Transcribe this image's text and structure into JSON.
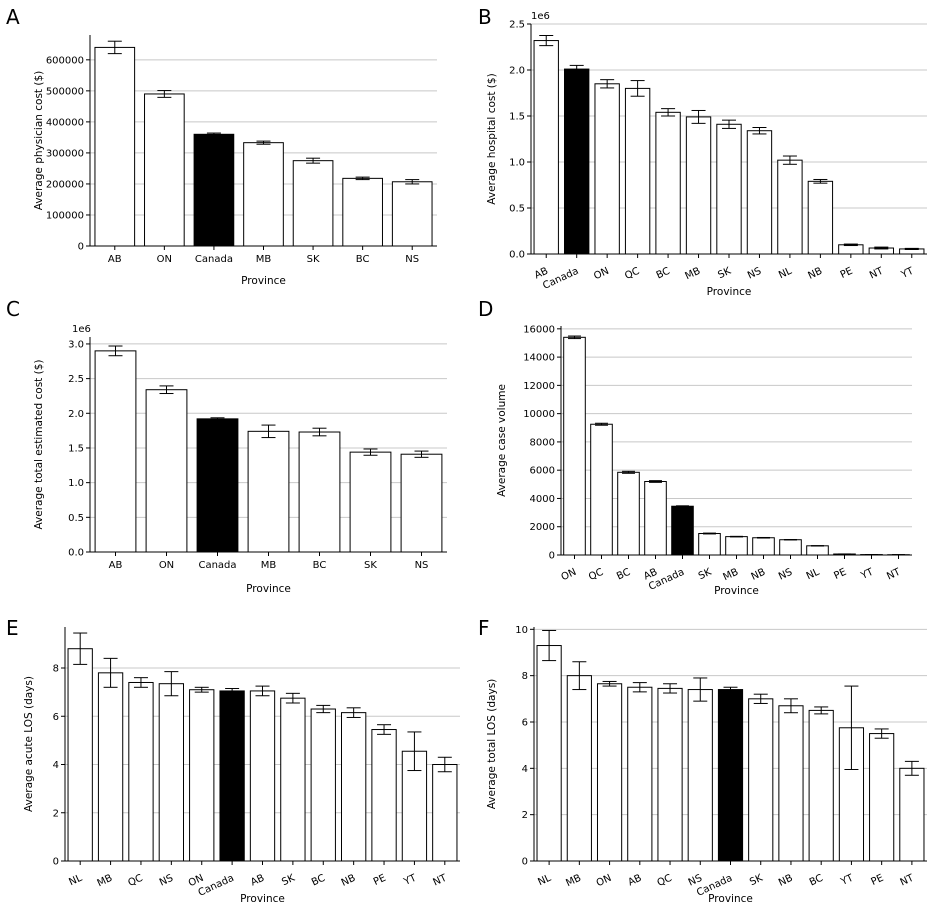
{
  "chart_data": [
    {
      "type": "bar",
      "panel": "A",
      "categories": [
        "AB",
        "ON",
        "Canada",
        "MB",
        "SK",
        "BC",
        "NS"
      ],
      "values": [
        640000,
        490000,
        360000,
        333000,
        275000,
        218000,
        207000
      ],
      "errors": [
        20000,
        11000,
        4000,
        5000,
        8000,
        4000,
        7000
      ],
      "highlight": "Canada",
      "xlabel": "Province",
      "ylabel": "Average physician cost ($)",
      "ylim": [
        0,
        680000
      ],
      "yticks": [
        0,
        100000,
        200000,
        300000,
        400000,
        500000,
        600000
      ],
      "ytick_labels": [
        "0",
        "100000",
        "200000",
        "300000",
        "400000",
        "500000",
        "600000"
      ],
      "multiplier": "",
      "grid": true
    },
    {
      "type": "bar",
      "panel": "B",
      "categories": [
        "AB",
        "Canada",
        "ON",
        "QC",
        "BC",
        "MB",
        "SK",
        "NS",
        "NL",
        "NB",
        "PE",
        "NT",
        "YT"
      ],
      "values": [
        2320000,
        2010000,
        1850000,
        1800000,
        1540000,
        1490000,
        1410000,
        1340000,
        1020000,
        790000,
        100000,
        65000,
        55000
      ],
      "errors": [
        55000,
        40000,
        45000,
        85000,
        40000,
        70000,
        45000,
        35000,
        45000,
        20000,
        8000,
        10000,
        6000
      ],
      "highlight": "Canada",
      "xlabel": "Province",
      "ylabel": "Average hospital cost ($)",
      "ylim": [
        0,
        2500000
      ],
      "yticks": [
        0,
        500000,
        1000000,
        1500000,
        2000000,
        2500000
      ],
      "ytick_labels": [
        "0.0",
        "0.5",
        "1.0",
        "1.5",
        "2.0",
        "2.5"
      ],
      "multiplier": "1e6",
      "grid": true
    },
    {
      "type": "bar",
      "panel": "C",
      "categories": [
        "AB",
        "ON",
        "Canada",
        "MB",
        "BC",
        "SK",
        "NS"
      ],
      "values": [
        2900000,
        2340000,
        1920000,
        1740000,
        1730000,
        1440000,
        1410000
      ],
      "errors": [
        70000,
        55000,
        15000,
        90000,
        55000,
        45000,
        45000
      ],
      "highlight": "Canada",
      "xlabel": "Province",
      "ylabel": "Average total estimated cost ($)",
      "ylim": [
        0,
        3100000
      ],
      "yticks": [
        0,
        500000,
        1000000,
        1500000,
        2000000,
        2500000,
        3000000
      ],
      "ytick_labels": [
        "0.0",
        "0.5",
        "1.0",
        "1.5",
        "2.0",
        "2.5",
        "3.0"
      ],
      "multiplier": "1e6",
      "grid": true
    },
    {
      "type": "bar",
      "panel": "D",
      "categories": [
        "ON",
        "QC",
        "BC",
        "AB",
        "Canada",
        "SK",
        "MB",
        "NB",
        "NS",
        "NL",
        "PE",
        "YT",
        "NT"
      ],
      "values": [
        15400,
        9250,
        5850,
        5200,
        3450,
        1520,
        1300,
        1220,
        1080,
        650,
        70,
        30,
        20
      ],
      "errors": [
        90,
        70,
        70,
        60,
        30,
        30,
        20,
        20,
        15,
        15,
        5,
        5,
        5
      ],
      "highlight": "Canada",
      "xlabel": "Province",
      "ylabel": "Average case volume",
      "ylim": [
        0,
        16200
      ],
      "yticks": [
        0,
        2000,
        4000,
        6000,
        8000,
        10000,
        12000,
        14000,
        16000
      ],
      "ytick_labels": [
        "0",
        "2000",
        "4000",
        "6000",
        "8000",
        "10000",
        "12000",
        "14000",
        "16000"
      ],
      "multiplier": "",
      "grid": true
    },
    {
      "type": "bar",
      "panel": "E",
      "categories": [
        "NL",
        "MB",
        "QC",
        "NS",
        "ON",
        "Canada",
        "AB",
        "SK",
        "BC",
        "NB",
        "PE",
        "YT",
        "NT"
      ],
      "values": [
        8.8,
        7.8,
        7.4,
        7.35,
        7.1,
        7.05,
        7.05,
        6.75,
        6.3,
        6.15,
        5.45,
        4.55,
        4.0
      ],
      "errors": [
        0.65,
        0.6,
        0.2,
        0.5,
        0.1,
        0.1,
        0.2,
        0.2,
        0.15,
        0.2,
        0.2,
        0.8,
        0.3
      ],
      "highlight": "Canada",
      "xlabel": "Province",
      "ylabel": "Average acute LOS (days)",
      "ylim": [
        0,
        9.7
      ],
      "yticks": [
        0,
        2,
        4,
        6,
        8
      ],
      "ytick_labels": [
        "0",
        "2",
        "4",
        "6",
        "8"
      ],
      "multiplier": "",
      "grid": true
    },
    {
      "type": "bar",
      "panel": "F",
      "categories": [
        "NL",
        "MB",
        "ON",
        "AB",
        "QC",
        "NS",
        "Canada",
        "SK",
        "NB",
        "BC",
        "YT",
        "PE",
        "NT"
      ],
      "values": [
        9.3,
        8.0,
        7.65,
        7.5,
        7.45,
        7.4,
        7.4,
        7.0,
        6.7,
        6.5,
        5.75,
        5.5,
        4.0
      ],
      "errors": [
        0.65,
        0.6,
        0.1,
        0.2,
        0.2,
        0.5,
        0.1,
        0.2,
        0.3,
        0.15,
        1.8,
        0.2,
        0.3
      ],
      "highlight": "Canada",
      "xlabel": "Province",
      "ylabel": "Average total LOS (days)",
      "ylim": [
        0,
        10.1
      ],
      "yticks": [
        0,
        2,
        4,
        6,
        8,
        10
      ],
      "ytick_labels": [
        "0",
        "2",
        "4",
        "6",
        "8",
        "10"
      ],
      "multiplier": "",
      "grid": true
    }
  ]
}
